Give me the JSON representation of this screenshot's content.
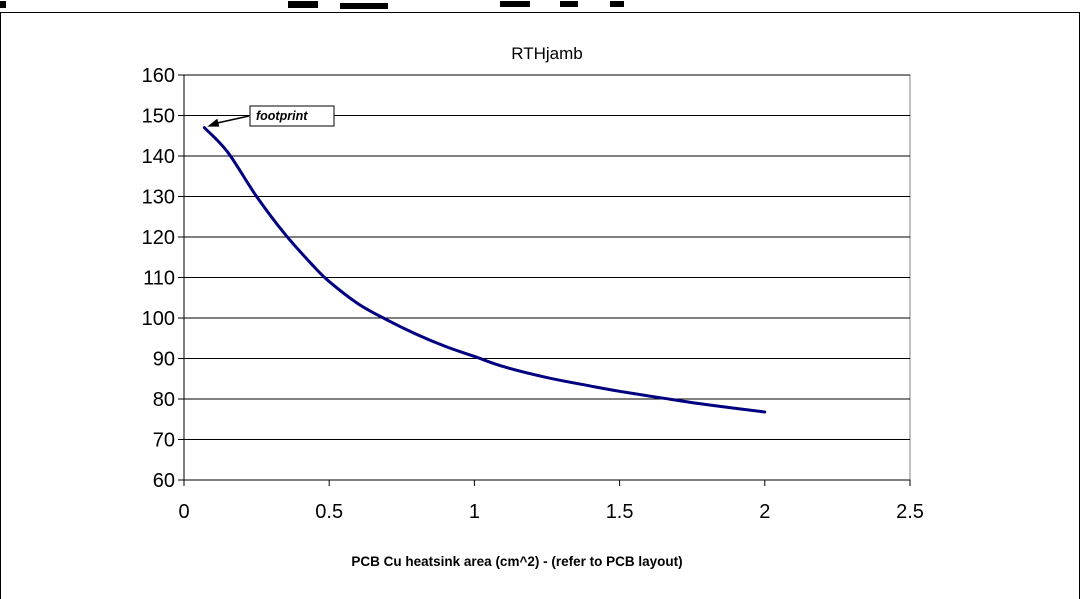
{
  "chart_data": {
    "type": "line",
    "title": "RTHjamb",
    "xlabel": "PCB Cu heatsink area (cm^2) -  (refer to PCB layout)",
    "ylabel": "",
    "xlim": [
      0,
      2.5
    ],
    "ylim": [
      60,
      160
    ],
    "x_ticks": [
      "0",
      "0.5",
      "1",
      "1.5",
      "2",
      "2.5"
    ],
    "y_ticks": [
      "60",
      "70",
      "80",
      "90",
      "100",
      "110",
      "120",
      "130",
      "140",
      "150",
      "160"
    ],
    "grid": "horizontal",
    "series": [
      {
        "color": "#000080",
        "x": [
          0.07,
          0.15,
          0.25,
          0.35,
          0.45,
          0.5,
          0.6,
          0.7,
          0.8,
          0.9,
          1.0,
          1.1,
          1.25,
          1.4,
          1.5,
          1.65,
          1.8,
          2.0
        ],
        "y": [
          147,
          141,
          130,
          120.5,
          112.5,
          109,
          103.5,
          99.5,
          96,
          93,
          90.5,
          88,
          85.3,
          83.2,
          81.9,
          80.2,
          78.6,
          76.8
        ]
      }
    ],
    "annotation": {
      "text": "footprint",
      "x": 0.07,
      "y": 147
    }
  }
}
